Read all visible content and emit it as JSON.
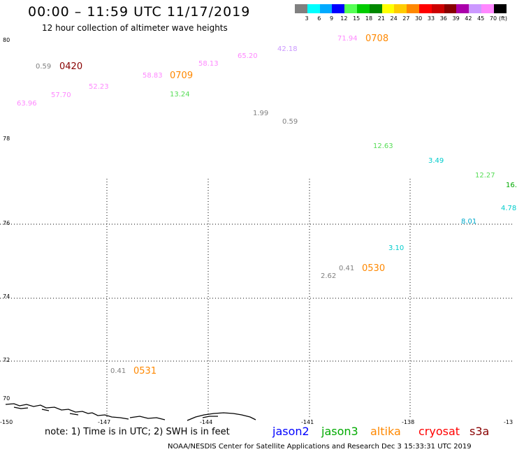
{
  "header": {
    "title": "00:00 – 11:59 UTC 11/17/2019",
    "subtitle": "12 hour collection of altimeter wave heights"
  },
  "legend": {
    "unit": "(ft)",
    "bins": [
      {
        "label": "3",
        "color": "#808080"
      },
      {
        "label": "6",
        "color": "#00ffff"
      },
      {
        "label": "9",
        "color": "#00aaff"
      },
      {
        "label": "12",
        "color": "#0000ff"
      },
      {
        "label": "15",
        "color": "#55ff55"
      },
      {
        "label": "18",
        "color": "#00cc00"
      },
      {
        "label": "21",
        "color": "#008800"
      },
      {
        "label": "24",
        "color": "#ffff00"
      },
      {
        "label": "27",
        "color": "#ffcc00"
      },
      {
        "label": "30",
        "color": "#ff8800"
      },
      {
        "label": "33",
        "color": "#ff0000"
      },
      {
        "label": "36",
        "color": "#cc0000"
      },
      {
        "label": "39",
        "color": "#880000"
      },
      {
        "label": "42",
        "color": "#aa00aa"
      },
      {
        "label": "45",
        "color": "#cc99ff"
      },
      {
        "label": "70",
        "color": "#ff88ff"
      },
      {
        "label": "",
        "color": "#000000"
      }
    ]
  },
  "axes": {
    "lat_labels": [
      "80",
      "78",
      "76",
      "74",
      "72",
      "70"
    ],
    "lon_labels": [
      "-150",
      "-147",
      "-144",
      "-141",
      "-138",
      "-13"
    ]
  },
  "observations": [
    {
      "text": "0.59",
      "color": "#808080"
    },
    {
      "text": "63.96",
      "color": "#ff88ff"
    },
    {
      "text": "57.70",
      "color": "#ff88ff"
    },
    {
      "text": "52.23",
      "color": "#ff88ff"
    },
    {
      "text": "58.83",
      "color": "#ff88ff"
    },
    {
      "text": "13.24",
      "color": "#55dd55"
    },
    {
      "text": "58.13",
      "color": "#ff88ff"
    },
    {
      "text": "65.20",
      "color": "#ff88ff"
    },
    {
      "text": "42.18",
      "color": "#cc99ff"
    },
    {
      "text": "71.94",
      "color": "#ff88ff"
    },
    {
      "text": "1.99",
      "color": "#808080"
    },
    {
      "text": "0.59",
      "color": "#808080"
    },
    {
      "text": "12.63",
      "color": "#55dd55"
    },
    {
      "text": "3.49",
      "color": "#00cccc"
    },
    {
      "text": "12.27",
      "color": "#55dd55"
    },
    {
      "text": "16.",
      "color": "#00aa00"
    },
    {
      "text": "4.78",
      "color": "#00cccc"
    },
    {
      "text": "8.01",
      "color": "#00aacc"
    },
    {
      "text": "3.10",
      "color": "#00cccc"
    },
    {
      "text": "0.41",
      "color": "#808080"
    },
    {
      "text": "2.62",
      "color": "#808080"
    },
    {
      "text": "0.41",
      "color": "#808080"
    }
  ],
  "pass_times": [
    {
      "text": "0420",
      "color": "#880000"
    },
    {
      "text": "0709",
      "color": "#ff8800"
    },
    {
      "text": "0708",
      "color": "#ff8800"
    },
    {
      "text": "0530",
      "color": "#ff8800"
    },
    {
      "text": "0531",
      "color": "#ff8800"
    }
  ],
  "footer": {
    "note": "note: 1) Time is in UTC; 2) SWH is in feet",
    "satellites": [
      {
        "name": "jason2",
        "color": "#0000ff"
      },
      {
        "name": "jason3",
        "color": "#00aa00"
      },
      {
        "name": "altika",
        "color": "#ff8800"
      },
      {
        "name": "cryosat",
        "color": "#ff0000"
      },
      {
        "name": "s3a",
        "color": "#880000"
      }
    ],
    "credit": "NOAA/NESDIS Center for Satellite Applications and Research   Dec  3 15:33:31 UTC 2019"
  }
}
